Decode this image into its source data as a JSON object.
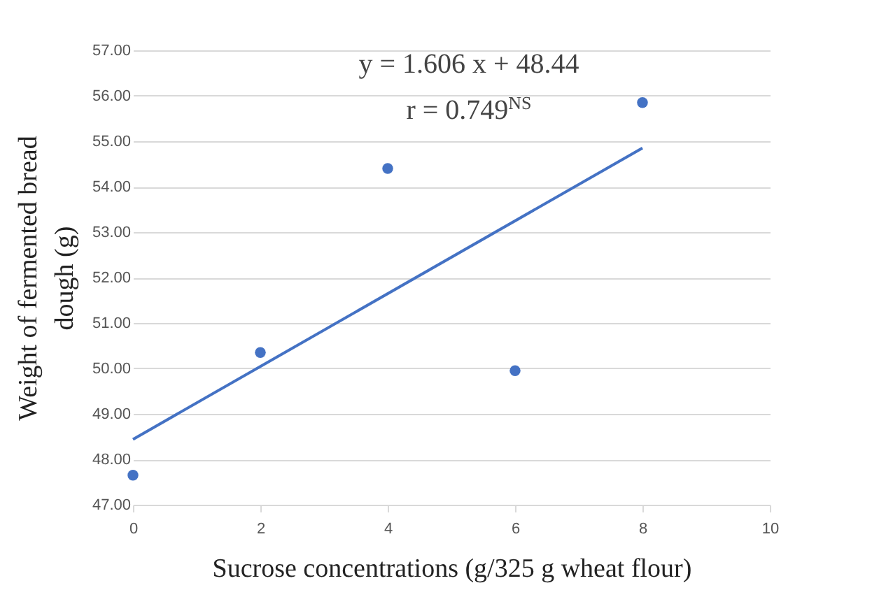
{
  "chart_data": {
    "type": "scatter",
    "xlabel": "Sucrose concentrations (g/325 g wheat flour)",
    "ylabel": "Weight of fermented bread dough (g)",
    "x": [
      0,
      2,
      4,
      6,
      8
    ],
    "series": [
      {
        "type": "scatter",
        "color": "#4472c4",
        "marker": "circle",
        "values": [
          47.65,
          50.35,
          54.4,
          49.95,
          55.85
        ]
      },
      {
        "type": "line",
        "color": "#4472c4",
        "x": [
          0,
          8
        ],
        "values": [
          48.44,
          54.85
        ]
      }
    ],
    "xlim": [
      0,
      10
    ],
    "xticks": [
      0,
      2,
      4,
      6,
      8,
      10
    ],
    "ylim": [
      47,
      57
    ],
    "yticks": [
      {
        "value": 47,
        "label": "47.00"
      },
      {
        "value": 48,
        "label": "48.00"
      },
      {
        "value": 49,
        "label": "49.00"
      },
      {
        "value": 50,
        "label": "50.00"
      },
      {
        "value": 51,
        "label": "51.00"
      },
      {
        "value": 52,
        "label": "52.00"
      },
      {
        "value": 53,
        "label": "53.00"
      },
      {
        "value": 54,
        "label": "54.00"
      },
      {
        "value": 55,
        "label": "55.00"
      },
      {
        "value": 56,
        "label": "56.00"
      },
      {
        "value": 57,
        "label": "57.00"
      }
    ],
    "grid": "y",
    "annotations": [
      "y = 1.606 x + 48.44",
      "r = 0.749$^{NS}$"
    ]
  }
}
